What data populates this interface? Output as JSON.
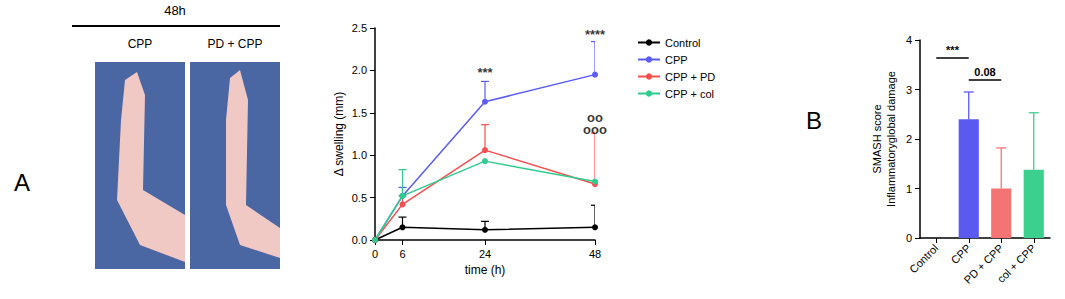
{
  "panel_labels": [
    "A",
    "B"
  ],
  "photo_panel": {
    "header": "48h",
    "labels": [
      "CPP",
      "PD + CPP"
    ]
  },
  "chart_data": [
    {
      "type": "line",
      "xlabel": "time (h)",
      "ylabel": "Δ swelling (mm)",
      "x": [
        0,
        6,
        24,
        48
      ],
      "xlim": [
        0,
        48
      ],
      "xticks": [
        0,
        6,
        24,
        48
      ],
      "ylim": [
        0,
        2.5
      ],
      "yticks": [
        {
          "value": 0,
          "label": "0.0"
        },
        0.5,
        {
          "value": 1,
          "label": "1.0"
        },
        1.5,
        {
          "value": 2,
          "label": "2.0"
        },
        2.5
      ],
      "grid": false,
      "legend": "right",
      "marker": "circle",
      "series": [
        {
          "name": "Control",
          "color": "#000000",
          "values": [
            0,
            0.15,
            0.12,
            0.15
          ],
          "errors": [
            0,
            0.12,
            0.1,
            0.26
          ]
        },
        {
          "name": "CPP",
          "color": "#5b5bf5",
          "values": [
            0,
            0.52,
            1.63,
            1.95
          ],
          "errors": [
            0,
            0.1,
            0.24,
            0.39
          ]
        },
        {
          "name": "CPP + PD",
          "color": "#f4504f",
          "values": [
            0,
            0.42,
            1.06,
            0.66
          ],
          "errors": [
            0,
            0.1,
            0.3,
            0.6
          ]
        },
        {
          "name": "CPP + col",
          "color": "#2fcc8f",
          "values": [
            0,
            0.52,
            0.93,
            0.69
          ],
          "errors": [
            0,
            0.31,
            0.0,
            0.0
          ]
        }
      ],
      "annotations": [
        {
          "text": "***",
          "x": 24,
          "y": 1.98
        },
        {
          "text": "****",
          "x": 48,
          "y": 2.42
        },
        {
          "text": "oo",
          "x": 48,
          "y": 1.45
        },
        {
          "text": "ooo",
          "x": 48,
          "y": 1.3
        }
      ]
    },
    {
      "type": "bar",
      "ylabel": [
        "SMASH score",
        "Inflammatoryglobal damage"
      ],
      "categories": [
        "Control",
        "CPP",
        "PD + CPP",
        "col + CPP"
      ],
      "values": [
        0,
        2.4,
        1.0,
        1.38
      ],
      "errors": [
        0,
        0.55,
        0.82,
        1.15
      ],
      "colors": [
        "#000000",
        "#5a5af0",
        "#f47474",
        "#3cd08f"
      ],
      "ylim": [
        0,
        4
      ],
      "yticks": [
        0,
        1,
        2,
        3,
        4
      ],
      "grid": false,
      "comparisons": [
        {
          "from": "Control",
          "to": "CPP",
          "label": "***"
        },
        {
          "from": "CPP",
          "to": "PD + CPP",
          "label": "0.08"
        }
      ]
    }
  ]
}
